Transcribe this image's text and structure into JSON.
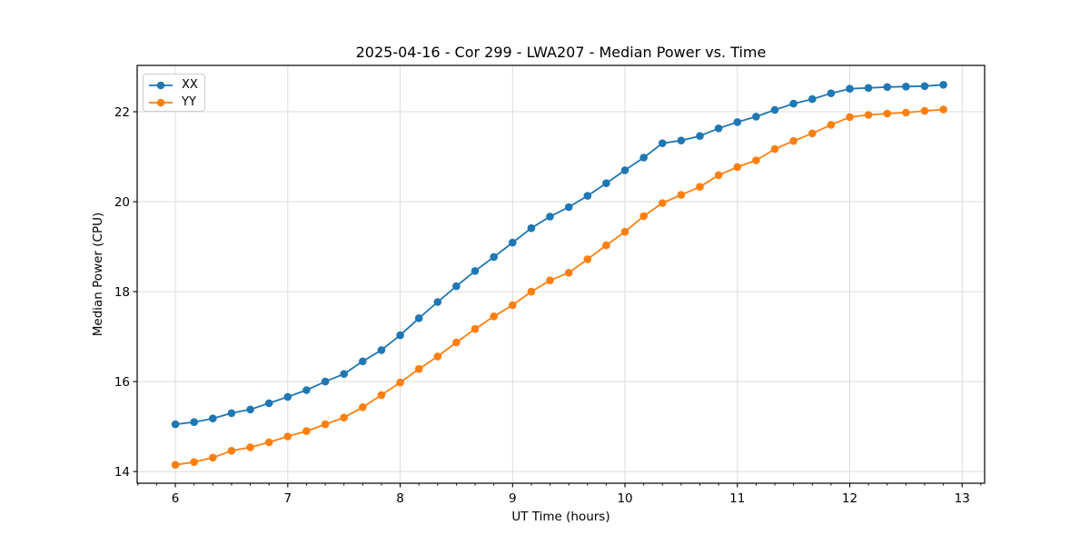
{
  "chart_data": {
    "type": "line",
    "title": "2025-04-16 - Cor 299 - LWA207 - Median Power vs. Time",
    "xlabel": "UT Time (hours)",
    "ylabel": "Median Power (CPU)",
    "xlim": [
      5.66,
      13.2
    ],
    "ylim": [
      13.74,
      23.03
    ],
    "xticks": [
      6,
      7,
      8,
      9,
      10,
      11,
      12,
      13
    ],
    "yticks": [
      14,
      16,
      18,
      20,
      22
    ],
    "x_minor_step": 0.166667,
    "grid": true,
    "grid_color": "#dcdcdc",
    "background": "#ffffff",
    "legend_position": "upper left",
    "marker": "circle",
    "x": [
      6.0,
      6.1667,
      6.3333,
      6.5,
      6.6667,
      6.8333,
      7.0,
      7.1667,
      7.3333,
      7.5,
      7.6667,
      7.8333,
      8.0,
      8.1667,
      8.3333,
      8.5,
      8.6667,
      8.8333,
      9.0,
      9.1667,
      9.3333,
      9.5,
      9.6667,
      9.8333,
      10.0,
      10.1667,
      10.3333,
      10.5,
      10.6667,
      10.8333,
      11.0,
      11.1667,
      11.3333,
      11.5,
      11.6667,
      11.8333,
      12.0,
      12.1667,
      12.3333,
      12.5,
      12.6667,
      12.8333
    ],
    "series": [
      {
        "name": "XX",
        "color": "#1f77b4",
        "values": [
          15.05,
          15.1,
          15.18,
          15.3,
          15.38,
          15.52,
          15.66,
          15.81,
          16.0,
          16.17,
          16.45,
          16.7,
          17.03,
          17.41,
          17.77,
          18.12,
          18.46,
          18.77,
          19.09,
          19.41,
          19.67,
          19.88,
          20.13,
          20.41,
          20.7,
          20.98,
          21.3,
          21.36,
          21.46,
          21.63,
          21.77,
          21.89,
          22.04,
          22.18,
          22.28,
          22.41,
          22.51,
          22.53,
          22.55,
          22.56,
          22.57,
          22.6
        ]
      },
      {
        "name": "YY",
        "color": "#ff7f0e",
        "values": [
          14.15,
          14.21,
          14.31,
          14.46,
          14.54,
          14.65,
          14.78,
          14.9,
          15.05,
          15.2,
          15.43,
          15.7,
          15.98,
          16.28,
          16.56,
          16.87,
          17.17,
          17.45,
          17.7,
          18.0,
          18.25,
          18.42,
          18.72,
          19.03,
          19.33,
          19.68,
          19.97,
          20.15,
          20.33,
          20.59,
          20.77,
          20.92,
          21.17,
          21.35,
          21.52,
          21.71,
          21.88,
          21.93,
          21.96,
          21.98,
          22.02,
          22.05
        ]
      }
    ]
  }
}
